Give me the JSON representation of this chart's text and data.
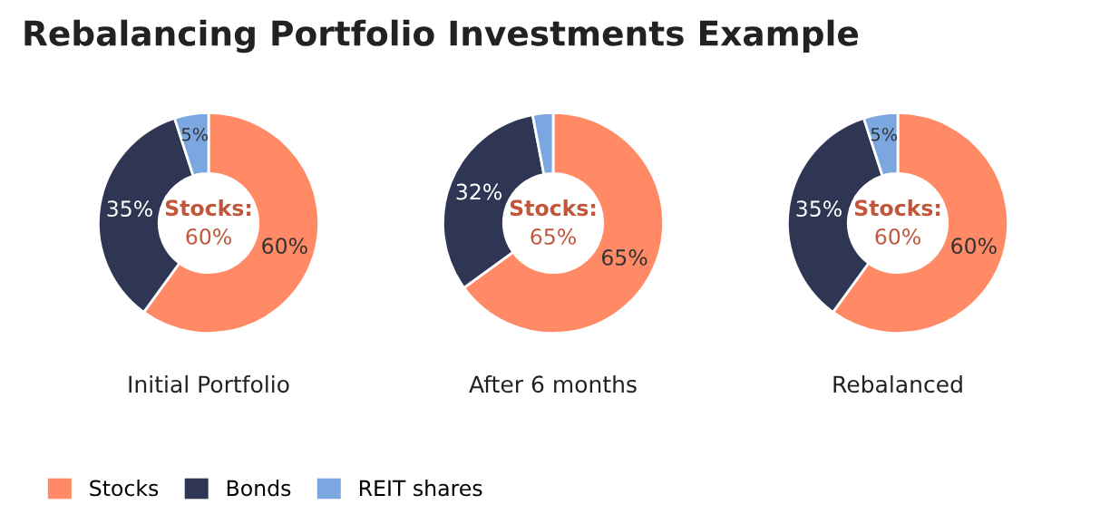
{
  "chart_data": [
    {
      "type": "donut",
      "title": "Rebalancing Portfolio Investments Example",
      "xlabel": "Initial Portfolio",
      "categories": [
        "Stocks",
        "Bonds",
        "REIT shares"
      ],
      "values": [
        60,
        35,
        5
      ],
      "colors": [
        "#ff8a65",
        "#2f3654",
        "#7ba7e1"
      ],
      "value_labels": [
        "60%",
        "35%",
        "5%"
      ],
      "annotations": [
        "Stocks:",
        "60%"
      ],
      "legend": "bottom"
    },
    {
      "type": "donut",
      "xlabel": "After 6 months",
      "categories": [
        null,
        null,
        null
      ],
      "values": [
        65,
        32,
        3
      ],
      "colors": [
        "#ff8a65",
        "#2f3654",
        "#7ba7e1"
      ],
      "value_labels": [
        "65%",
        "32%",
        null
      ],
      "annotations": [
        "Stocks:",
        "65%"
      ]
    },
    {
      "type": "donut",
      "xlabel": "Rebalanced",
      "categories": [
        null,
        null,
        null
      ],
      "values": [
        60,
        35,
        5
      ],
      "colors": [
        "#ff8a65",
        "#2f3654",
        "#7ba7e1"
      ],
      "value_labels": [
        "60%",
        "35%",
        "5%"
      ],
      "annotations": [
        "Stocks:",
        "60%"
      ]
    }
  ]
}
